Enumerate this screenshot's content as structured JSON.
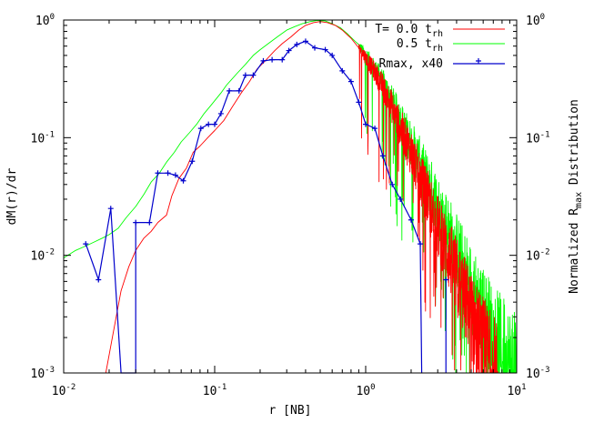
{
  "chart_data": {
    "type": "line",
    "xlabel": "r [NB]",
    "ylabel": "dM(r)/dr",
    "y2label": "Normalized R",
    "y2label_sub": "max",
    "y2label_tail": " Distribution",
    "x_scale": "log",
    "y_scale": "log",
    "xlim": [
      0.01,
      10
    ],
    "ylim": [
      0.001,
      1
    ],
    "grid": false,
    "legend_position": "top-right",
    "x_ticks": [
      {
        "value": 0.01,
        "base": "10",
        "exp": "-2"
      },
      {
        "value": 0.1,
        "base": "10",
        "exp": "-1"
      },
      {
        "value": 1,
        "base": "10",
        "exp": "0"
      },
      {
        "value": 10,
        "base": "10",
        "exp": "1"
      }
    ],
    "y_ticks": [
      {
        "value": 0.001,
        "base": "10",
        "exp": "-3"
      },
      {
        "value": 0.01,
        "base": "10",
        "exp": "-2"
      },
      {
        "value": 0.1,
        "base": "10",
        "exp": "-1"
      },
      {
        "value": 1,
        "base": "10",
        "exp": "0"
      }
    ],
    "series": [
      {
        "name": "T= 0.0 t",
        "name_sub": "rh",
        "color": "#ff0000",
        "style": "line",
        "noisy_from": 0.9,
        "points": [
          [
            0.019,
            0.001
          ],
          [
            0.021,
            0.002
          ],
          [
            0.024,
            0.005
          ],
          [
            0.027,
            0.008
          ],
          [
            0.03,
            0.011
          ],
          [
            0.034,
            0.014
          ],
          [
            0.038,
            0.016
          ],
          [
            0.042,
            0.019
          ],
          [
            0.048,
            0.022
          ],
          [
            0.052,
            0.032
          ],
          [
            0.058,
            0.045
          ],
          [
            0.065,
            0.055
          ],
          [
            0.072,
            0.075
          ],
          [
            0.08,
            0.085
          ],
          [
            0.09,
            0.1
          ],
          [
            0.1,
            0.115
          ],
          [
            0.115,
            0.14
          ],
          [
            0.13,
            0.18
          ],
          [
            0.15,
            0.24
          ],
          [
            0.17,
            0.3
          ],
          [
            0.19,
            0.38
          ],
          [
            0.22,
            0.46
          ],
          [
            0.25,
            0.55
          ],
          [
            0.28,
            0.63
          ],
          [
            0.32,
            0.72
          ],
          [
            0.36,
            0.82
          ],
          [
            0.4,
            0.9
          ],
          [
            0.45,
            0.95
          ],
          [
            0.5,
            0.97
          ],
          [
            0.56,
            0.95
          ],
          [
            0.63,
            0.9
          ],
          [
            0.7,
            0.82
          ],
          [
            0.8,
            0.7
          ],
          [
            0.9,
            0.58
          ],
          [
            1.0,
            0.48
          ],
          [
            1.15,
            0.36
          ],
          [
            1.3,
            0.27
          ],
          [
            1.5,
            0.18
          ],
          [
            1.7,
            0.12
          ],
          [
            2.0,
            0.075
          ],
          [
            2.3,
            0.045
          ],
          [
            2.7,
            0.025
          ],
          [
            3.2,
            0.014
          ],
          [
            3.8,
            0.008
          ],
          [
            4.5,
            0.0045
          ],
          [
            5.3,
            0.0025
          ],
          [
            6.3,
            0.0015
          ],
          [
            7.5,
            0.001
          ]
        ]
      },
      {
        "name": "0.5 t",
        "name_sub": "rh",
        "color": "#00ff00",
        "style": "line",
        "noisy_from": 0.9,
        "points": [
          [
            0.01,
            0.0095
          ],
          [
            0.012,
            0.011
          ],
          [
            0.014,
            0.012
          ],
          [
            0.016,
            0.013
          ],
          [
            0.018,
            0.014
          ],
          [
            0.02,
            0.015
          ],
          [
            0.023,
            0.017
          ],
          [
            0.026,
            0.021
          ],
          [
            0.03,
            0.026
          ],
          [
            0.034,
            0.033
          ],
          [
            0.038,
            0.042
          ],
          [
            0.043,
            0.05
          ],
          [
            0.048,
            0.062
          ],
          [
            0.054,
            0.075
          ],
          [
            0.06,
            0.092
          ],
          [
            0.068,
            0.11
          ],
          [
            0.076,
            0.13
          ],
          [
            0.085,
            0.16
          ],
          [
            0.095,
            0.19
          ],
          [
            0.11,
            0.24
          ],
          [
            0.12,
            0.28
          ],
          [
            0.14,
            0.35
          ],
          [
            0.16,
            0.42
          ],
          [
            0.18,
            0.5
          ],
          [
            0.2,
            0.56
          ],
          [
            0.23,
            0.64
          ],
          [
            0.26,
            0.72
          ],
          [
            0.3,
            0.82
          ],
          [
            0.34,
            0.88
          ],
          [
            0.38,
            0.93
          ],
          [
            0.43,
            0.97
          ],
          [
            0.48,
            0.99
          ],
          [
            0.54,
            0.98
          ],
          [
            0.6,
            0.93
          ],
          [
            0.68,
            0.86
          ],
          [
            0.76,
            0.76
          ],
          [
            0.85,
            0.66
          ],
          [
            0.95,
            0.55
          ],
          [
            1.05,
            0.46
          ],
          [
            1.2,
            0.35
          ],
          [
            1.35,
            0.27
          ],
          [
            1.5,
            0.2
          ],
          [
            1.7,
            0.14
          ],
          [
            2.0,
            0.09
          ],
          [
            2.3,
            0.06
          ],
          [
            2.7,
            0.037
          ],
          [
            3.2,
            0.022
          ],
          [
            3.8,
            0.013
          ],
          [
            4.5,
            0.0075
          ],
          [
            5.3,
            0.0045
          ],
          [
            6.3,
            0.0028
          ],
          [
            7.5,
            0.0018
          ],
          [
            9.0,
            0.0012
          ],
          [
            10.0,
            0.001
          ]
        ]
      },
      {
        "name": "Rmax, x40",
        "color": "#0000cc",
        "style": "linespoints",
        "points": [
          [
            0.014,
            0.0125
          ],
          [
            0.017,
            0.0062
          ],
          [
            0.0205,
            0.025
          ],
          [
            0.024,
            0.001
          ],
          [
            0.03,
            0.001
          ],
          [
            0.03,
            0.019
          ],
          [
            0.037,
            0.019
          ],
          [
            0.042,
            0.05
          ],
          [
            0.049,
            0.05
          ],
          [
            0.055,
            0.048
          ],
          [
            0.062,
            0.043
          ],
          [
            0.071,
            0.063
          ],
          [
            0.081,
            0.12
          ],
          [
            0.091,
            0.13
          ],
          [
            0.1,
            0.13
          ],
          [
            0.11,
            0.16
          ],
          [
            0.125,
            0.25
          ],
          [
            0.145,
            0.25
          ],
          [
            0.16,
            0.34
          ],
          [
            0.18,
            0.34
          ],
          [
            0.21,
            0.45
          ],
          [
            0.24,
            0.46
          ],
          [
            0.28,
            0.46
          ],
          [
            0.31,
            0.55
          ],
          [
            0.35,
            0.62
          ],
          [
            0.4,
            0.66
          ],
          [
            0.46,
            0.58
          ],
          [
            0.54,
            0.56
          ],
          [
            0.6,
            0.5
          ],
          [
            0.7,
            0.37
          ],
          [
            0.8,
            0.3
          ],
          [
            0.9,
            0.2
          ],
          [
            1.0,
            0.13
          ],
          [
            1.15,
            0.12
          ],
          [
            1.3,
            0.07
          ],
          [
            1.5,
            0.04
          ],
          [
            1.7,
            0.03
          ],
          [
            2.0,
            0.02
          ],
          [
            2.3,
            0.0125
          ],
          [
            2.35,
            0.001
          ]
        ],
        "isolated_points": [
          [
            3.4,
            0.0062
          ]
        ]
      }
    ]
  }
}
